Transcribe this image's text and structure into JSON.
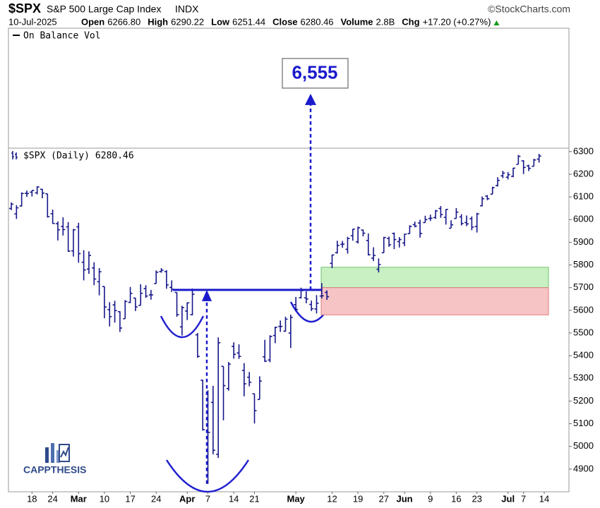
{
  "header": {
    "symbol": "$SPX",
    "name": "S&P 500 Large Cap Index",
    "exchange": "INDX",
    "source": "©StockCharts.com",
    "date": "10-Jul-2025",
    "fields": [
      {
        "label": "Open",
        "value": "6266.80"
      },
      {
        "label": "High",
        "value": "6290.22"
      },
      {
        "label": "Low",
        "value": "6251.44"
      },
      {
        "label": "Close",
        "value": "6280.46"
      },
      {
        "label": "Volume",
        "value": "2.8B"
      },
      {
        "label": "Chg",
        "value": "+17.20 (+0.27%)"
      }
    ]
  },
  "chart_data": {
    "type": "ohlc",
    "upper_panel": "On Balance Vol",
    "logo": "CAPPTHESIS",
    "categories": [
      null,
      null,
      null,
      null,
      "18",
      null,
      null,
      null,
      "24",
      null,
      null,
      null,
      null,
      "Mar",
      null,
      null,
      null,
      null,
      "10",
      null,
      null,
      null,
      null,
      "17",
      null,
      null,
      null,
      null,
      "24",
      null,
      null,
      null,
      null,
      null,
      "Apr",
      null,
      null,
      null,
      "7",
      null,
      null,
      null,
      null,
      "14",
      null,
      null,
      null,
      "21",
      null,
      null,
      null,
      null,
      null,
      null,
      null,
      "May",
      null,
      null,
      null,
      null,
      null,
      null,
      "12",
      null,
      null,
      null,
      null,
      "19",
      null,
      null,
      null,
      null,
      "27",
      null,
      null,
      null,
      "Jun",
      null,
      null,
      null,
      null,
      "9",
      null,
      null,
      null,
      null,
      "16",
      null,
      null,
      null,
      "23",
      null,
      null,
      null,
      null,
      null,
      "Jul",
      null,
      null,
      "7",
      null,
      null,
      null,
      "14"
    ],
    "series": [
      {
        "name": "$SPX (Daily)",
        "color": "#16168a",
        "open": [
          6049,
          6025,
          6060,
          6116,
          6121,
          6118,
          6134,
          6114,
          6026,
          5982,
          5970,
          5968,
          5862,
          5968,
          5812,
          5782,
          5787,
          5726,
          5705,
          5603,
          5624,
          5594,
          5563,
          5635,
          5654,
          5622,
          5696,
          5668,
          5718,
          5771,
          5771,
          5701,
          5679,
          5527,
          5597,
          5581,
          5492,
          5292,
          4953,
          5194,
          4965,
          5353,
          5255,
          5441,
          5412,
          5335,
          5305,
          5232,
          5207,
          5395,
          5381,
          5489,
          5529,
          5508,
          5500,
          5625,
          5656,
          5655,
          5626,
          5606,
          5663,
          5679,
          5807,
          5854,
          5891,
          5869,
          5929,
          5902,
          5954,
          5908,
          5830,
          5781,
          5854,
          5917,
          5939,
          5903,
          5897,
          5938,
          5978,
          5985,
          5987,
          6005,
          6009,
          6049,
          6010,
          5962,
          6005,
          6012,
          5987,
          6004,
          5970,
          6061,
          6104,
          6112,
          6150,
          6193,
          6187,
          6191,
          6244,
          6259,
          6237,
          6235,
          6266.8,
          null
        ],
        "high": [
          6076,
          6064,
          6120,
          6128,
          6129,
          6147,
          6135,
          6114,
          6044,
          5992,
          6010,
          5989,
          5959,
          5986,
          5865,
          5860,
          5812,
          5786,
          5705,
          5636,
          5642,
          5596,
          5645,
          5703,
          5655,
          5715,
          5711,
          5690,
          5776,
          5786,
          5777,
          5732,
          5679,
          5620,
          5635,
          5696,
          5500,
          5293,
          5247,
          5267,
          5481,
          5353,
          5372,
          5459,
          5450,
          5367,
          5328,
          5232,
          5309,
          5470,
          5490,
          5528,
          5555,
          5572,
          5581,
          5659,
          5700,
          5684,
          5643,
          5667,
          5720,
          5688,
          5846,
          5907,
          5906,
          5924,
          5959,
          5969,
          5956,
          5939,
          5878,
          5829,
          5924,
          5925,
          5943,
          5923,
          5937,
          5975,
          5991,
          5999,
          6017,
          6022,
          6043,
          6060,
          6046,
          5997,
          6051,
          6024,
          6018,
          6014,
          6030,
          6102,
          6108,
          6145,
          6187,
          6215,
          6210,
          6228,
          6285,
          6262,
          6242,
          6268,
          6290.22,
          null
        ],
        "low": [
          6042,
          6003,
          6058,
          6100,
          6102,
          6111,
          6094,
          6009,
          5982,
          5908,
          5930,
          5858,
          5837,
          5810,
          5732,
          5761,
          5711,
          5666,
          5565,
          5529,
          5546,
          5505,
          5563,
          5632,
          5597,
          5622,
          5655,
          5647,
          5718,
          5766,
          5695,
          5681,
          5572,
          5489,
          5557,
          5578,
          5391,
          5070,
          4835,
          4965,
          4949,
          5115,
          5246,
          5387,
          5386,
          5221,
          5265,
          5101,
          5207,
          5372,
          5371,
          5455,
          5505,
          5506,
          5434,
          5597,
          5652,
          5631,
          5597,
          5586,
          5652,
          5646,
          5786,
          5850,
          5876,
          5850,
          5907,
          5895,
          5926,
          5842,
          5817,
          5767,
          5854,
          5880,
          5870,
          5877,
          5883,
          5938,
          5966,
          5921,
          5987,
          5994,
          6003,
          6008,
          5978,
          5963,
          6005,
          5974,
          5971,
          5953,
          5943,
          6058,
          6086,
          6112,
          6146,
          6183,
          6177,
          6187,
          6244,
          6201,
          6214,
          6235,
          6251.44,
          null
        ],
        "close": [
          6068,
          6052,
          6115,
          6115,
          6129,
          6144,
          6117,
          6013,
          5983,
          5955,
          5956,
          5861,
          5955,
          5850,
          5778,
          5842,
          5738,
          5770,
          5615,
          5572,
          5599,
          5522,
          5639,
          5675,
          5615,
          5675,
          5663,
          5668,
          5768,
          5777,
          5712,
          5693,
          5581,
          5612,
          5633,
          5671,
          5397,
          5074,
          5062,
          4983,
          5457,
          5268,
          5363,
          5406,
          5397,
          5276,
          5283,
          5158,
          5288,
          5376,
          5485,
          5525,
          5529,
          5561,
          5569,
          5604,
          5687,
          5650,
          5607,
          5631,
          5664,
          5660,
          5844,
          5886,
          5892,
          5917,
          5958,
          5964,
          5940,
          5845,
          5842,
          5802,
          5921,
          5889,
          5912,
          5912,
          5936,
          5970,
          5971,
          5939,
          6000,
          6006,
          6038,
          6022,
          6045,
          5977,
          6033,
          5983,
          5981,
          5967,
          6025,
          6092,
          6092,
          6141,
          6173,
          6205,
          6198,
          6227,
          6279,
          6230,
          6226,
          6263,
          6280.46,
          null
        ]
      }
    ],
    "ylim": [
      4800,
      6315
    ],
    "yticks": [
      4900,
      5000,
      5100,
      5200,
      5300,
      5400,
      5500,
      5600,
      5700,
      5800,
      5900,
      6000,
      6100,
      6200,
      6300
    ],
    "annotations": {
      "target": {
        "value": 6555,
        "label": "6,555"
      },
      "neckline": 5690,
      "zones": [
        {
          "range": [
            5700,
            5790
          ],
          "color": "#c8f0c2"
        },
        {
          "range": [
            5580,
            5700
          ],
          "color": "#f6c4c4"
        }
      ]
    }
  }
}
